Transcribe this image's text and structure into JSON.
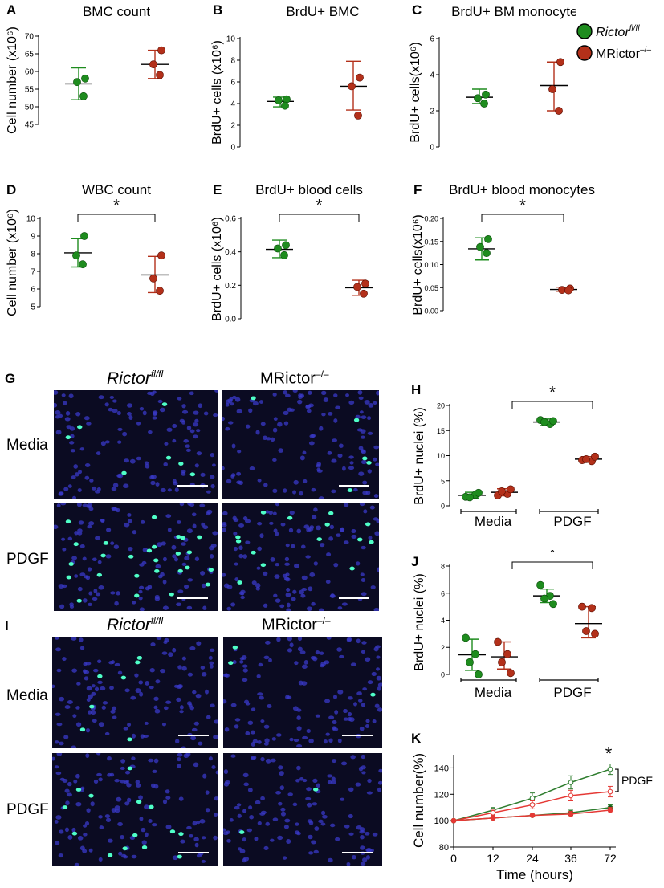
{
  "legend": {
    "entries": [
      {
        "name_main": "Rictor",
        "name_sup": "fl/fl",
        "color": "#1e8c1e"
      },
      {
        "name_main": "MRictor",
        "name_sup": "–/–",
        "color": "#b3301a"
      }
    ]
  },
  "colors": {
    "green": "#1e8c1e",
    "red": "#b3301a",
    "k_green_line": "#2e7d2e",
    "k_red_line": "#e53935",
    "nuclei": "#3a3ac8",
    "brdu": "#4fffc8"
  },
  "panels_text": {
    "G": {
      "letter": "G",
      "col1_main": "Rictor",
      "col1_sup": "fl/fl",
      "col2_main": "MRictor",
      "col2_sup": "–/–",
      "row1": "Media",
      "row2": "PDGF"
    },
    "I": {
      "letter": "I",
      "col1_main": "Rictor",
      "col1_sup": "fl/fl",
      "col2_main": "MRictor",
      "col2_sup": "–/–",
      "row1": "Media",
      "row2": "PDGF"
    }
  },
  "chart_data": [
    {
      "id": "A",
      "letter": "A",
      "type": "scatter",
      "title": "BMC count",
      "ylabel": "Cell number (x10⁶)",
      "ylim": [
        45,
        70
      ],
      "yticks": [
        45,
        50,
        55,
        60,
        65,
        70
      ],
      "groups": [
        {
          "name": "Rictor fl/fl",
          "color": "green",
          "points": [
            58,
            57,
            53
          ],
          "mean": 56.5,
          "err": [
            52,
            61
          ]
        },
        {
          "name": "MRictor -/-",
          "color": "red",
          "points": [
            66,
            62,
            59
          ],
          "mean": 62,
          "err": [
            58,
            66
          ]
        }
      ]
    },
    {
      "id": "B",
      "letter": "B",
      "type": "scatter",
      "title": "BrdU+ BMC",
      "ylabel": "BrdU+ cells (x10⁶)",
      "ylim": [
        0,
        10
      ],
      "yticks": [
        0,
        2,
        4,
        6,
        8,
        10
      ],
      "groups": [
        {
          "name": "Rictor fl/fl",
          "color": "green",
          "points": [
            4.4,
            4.3,
            3.8
          ],
          "mean": 4.2,
          "err": [
            3.7,
            4.6
          ]
        },
        {
          "name": "MRictor -/-",
          "color": "red",
          "points": [
            6.4,
            5.6,
            2.9
          ],
          "mean": 5.6,
          "err": [
            3.4,
            7.9
          ]
        }
      ]
    },
    {
      "id": "C",
      "letter": "C",
      "type": "scatter",
      "title": "BrdU+ BM monocytes",
      "ylabel": "BrdU+ cells(x10⁶)",
      "ylim": [
        0,
        6
      ],
      "yticks": [
        0,
        2,
        4,
        6
      ],
      "groups": [
        {
          "name": "Rictor fl/fl",
          "color": "green",
          "points": [
            2.9,
            2.7,
            2.4
          ],
          "mean": 2.75,
          "err": [
            2.4,
            3.2
          ]
        },
        {
          "name": "MRictor -/-",
          "color": "red",
          "points": [
            4.7,
            3.2,
            2.0
          ],
          "mean": 3.4,
          "err": [
            2.0,
            4.7
          ]
        }
      ]
    },
    {
      "id": "D",
      "letter": "D",
      "type": "scatter",
      "title": "WBC count",
      "ylabel": "Cell number (x10⁶)",
      "ylim": [
        5,
        10
      ],
      "yticks": [
        5,
        6,
        7,
        8,
        9,
        10
      ],
      "sig": "*",
      "groups": [
        {
          "name": "Rictor fl/fl",
          "color": "green",
          "points": [
            9.0,
            7.9,
            7.4
          ],
          "mean": 8.05,
          "err": [
            7.25,
            8.85
          ]
        },
        {
          "name": "MRictor -/-",
          "color": "red",
          "points": [
            7.9,
            6.6,
            5.9
          ],
          "mean": 6.8,
          "err": [
            5.8,
            7.85
          ]
        }
      ]
    },
    {
      "id": "E",
      "letter": "E",
      "type": "scatter",
      "title": "BrdU+ blood cells",
      "ylabel": "BrdU+ cells (x10⁶)",
      "ylim": [
        0,
        0.6
      ],
      "yticks": [
        0.0,
        0.2,
        0.4,
        0.6
      ],
      "tickDigits": 1,
      "sig": "*",
      "groups": [
        {
          "name": "Rictor fl/fl",
          "color": "green",
          "points": [
            0.44,
            0.42,
            0.38
          ],
          "mean": 0.415,
          "err": [
            0.365,
            0.47
          ]
        },
        {
          "name": "MRictor -/-",
          "color": "red",
          "points": [
            0.21,
            0.19,
            0.15
          ],
          "mean": 0.185,
          "err": [
            0.14,
            0.23
          ]
        }
      ]
    },
    {
      "id": "F",
      "letter": "F",
      "type": "scatter",
      "title": "BrdU+ blood monocytes",
      "ylabel": "BrdU+ cells(x10⁶)",
      "ylim": [
        0,
        0.2
      ],
      "yticks": [
        0.0,
        0.05,
        0.1,
        0.15,
        0.2
      ],
      "tickDigits": 2,
      "sig": "*",
      "groups": [
        {
          "name": "Rictor fl/fl",
          "color": "green",
          "points": [
            0.155,
            0.138,
            0.125
          ],
          "mean": 0.134,
          "err": [
            0.11,
            0.158
          ]
        },
        {
          "name": "MRictor -/-",
          "color": "red",
          "points": [
            0.048,
            0.045,
            0.044
          ],
          "mean": 0.046,
          "err": [
            0.042,
            0.051
          ]
        }
      ]
    },
    {
      "id": "H",
      "letter": "H",
      "type": "scatter",
      "title": "",
      "ylabel": "BrdU+ nuclei (%)",
      "ylim": [
        0,
        20
      ],
      "yticks": [
        0,
        5,
        10,
        15,
        20
      ],
      "sig": "*",
      "categories": [
        "Media",
        "PDGF"
      ],
      "groups": [
        {
          "name": "Rictor fl/fl Media",
          "color": "green",
          "points": [
            1.8,
            2.2,
            1.7,
            2.6
          ],
          "mean": 2.1,
          "err": [
            1.5,
            2.7
          ]
        },
        {
          "name": "MRictor -/- Media",
          "color": "red",
          "points": [
            2.1,
            2.4,
            2.9,
            3.3
          ],
          "mean": 2.7,
          "err": [
            2.0,
            3.4
          ]
        },
        {
          "name": "Rictor fl/fl PDGF",
          "color": "green",
          "points": [
            17.1,
            16.3,
            16.7,
            16.9
          ],
          "mean": 16.7,
          "err": [
            16.0,
            17.3
          ]
        },
        {
          "name": "MRictor -/- PDGF",
          "color": "red",
          "points": [
            9.1,
            8.9,
            9.3,
            9.8
          ],
          "mean": 9.3,
          "err": [
            8.8,
            9.8
          ]
        }
      ]
    },
    {
      "id": "J",
      "letter": "J",
      "type": "scatter",
      "title": "",
      "ylabel": "BrdU+ nuclei (%)",
      "ylim": [
        0,
        8
      ],
      "yticks": [
        0,
        2,
        4,
        6,
        8
      ],
      "sig": "*",
      "categories": [
        "Media",
        "PDGF"
      ],
      "groups": [
        {
          "name": "Rictor fl/fl Media",
          "color": "green",
          "points": [
            2.7,
            1.5,
            0.9,
            0.0
          ],
          "mean": 1.45,
          "err": [
            0.3,
            2.6
          ]
        },
        {
          "name": "MRictor -/- Media",
          "color": "red",
          "points": [
            2.4,
            1.5,
            0.9,
            0.1
          ],
          "mean": 1.3,
          "err": [
            0.4,
            2.4
          ]
        },
        {
          "name": "Rictor fl/fl PDGF",
          "color": "green",
          "points": [
            6.6,
            5.8,
            5.6,
            5.2
          ],
          "mean": 5.8,
          "err": [
            5.3,
            6.3
          ]
        },
        {
          "name": "MRictor -/- PDGF",
          "color": "red",
          "points": [
            5.0,
            4.9,
            3.2,
            3.0
          ],
          "mean": 3.75,
          "err": [
            2.7,
            5.0
          ]
        }
      ]
    },
    {
      "id": "K",
      "letter": "K",
      "type": "line",
      "title": "",
      "xlabel": "Time (hours)",
      "ylabel": "Cell number(%)",
      "x": [
        0,
        12,
        24,
        36,
        72
      ],
      "xticks": [
        "0",
        "12",
        "24",
        "36",
        "72"
      ],
      "ylim": [
        80,
        150
      ],
      "yticks": [
        80,
        100,
        120,
        140
      ],
      "sig": "*",
      "bracket_label": "PDGF",
      "series": [
        {
          "color": "k_green_line",
          "marker": "open",
          "values": [
            100,
            108,
            117,
            129,
            139
          ],
          "err": [
            0,
            2,
            4,
            5,
            4
          ]
        },
        {
          "color": "k_red_line",
          "marker": "open",
          "values": [
            100,
            106,
            112,
            119,
            122
          ],
          "err": [
            0,
            2,
            3,
            4,
            4
          ]
        },
        {
          "color": "k_green_line",
          "marker": "filled",
          "values": [
            100,
            102,
            104,
            106,
            110
          ],
          "err": [
            0,
            1,
            1,
            2,
            2
          ]
        },
        {
          "color": "k_red_line",
          "marker": "filled",
          "values": [
            100,
            102,
            104,
            105,
            108
          ],
          "err": [
            0,
            1,
            1,
            2,
            2
          ]
        }
      ]
    }
  ]
}
